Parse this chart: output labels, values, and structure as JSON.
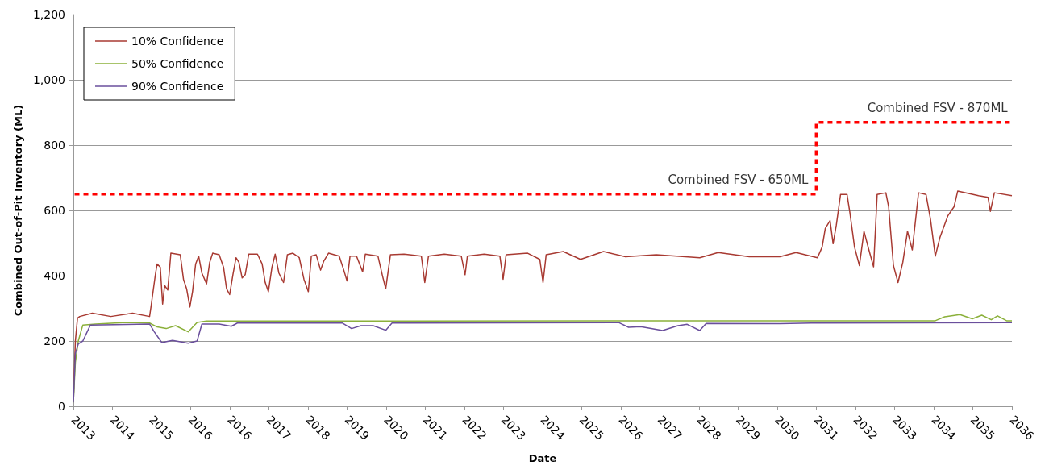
{
  "chart_data": {
    "type": "line",
    "xlabel": "Date",
    "ylabel": "Combined Out-of-Pit Inventory (ML)",
    "xlim": [
      "2013-02-25",
      "2036-03-09"
    ],
    "xticks": [
      {
        "value": "2013-02-25",
        "label": "2013"
      },
      {
        "value": "2014-02-10",
        "label": "2014"
      },
      {
        "value": "2015-01-26",
        "label": "2015"
      },
      {
        "value": "2016-01-11",
        "label": "2016"
      },
      {
        "value": "2016-12-27",
        "label": "2016"
      },
      {
        "value": "2017-12-13",
        "label": "2017"
      },
      {
        "value": "2018-11-28",
        "label": "2018"
      },
      {
        "value": "2019-11-14",
        "label": "2019"
      },
      {
        "value": "2020-10-29",
        "label": "2020"
      },
      {
        "value": "2021-10-15",
        "label": "2021"
      },
      {
        "value": "2022-10-01",
        "label": "2022"
      },
      {
        "value": "2023-09-16",
        "label": "2023"
      },
      {
        "value": "2024-09-02",
        "label": "2024"
      },
      {
        "value": "2025-08-17",
        "label": "2025"
      },
      {
        "value": "2026-08-03",
        "label": "2026"
      },
      {
        "value": "2027-07-19",
        "label": "2027"
      },
      {
        "value": "2028-07-04",
        "label": "2028"
      },
      {
        "value": "2029-06-20",
        "label": "2029"
      },
      {
        "value": "2030-06-05",
        "label": "2030"
      },
      {
        "value": "2031-05-21",
        "label": "2031"
      },
      {
        "value": "2032-05-07",
        "label": "2032"
      },
      {
        "value": "2033-04-22",
        "label": "2033"
      },
      {
        "value": "2034-04-08",
        "label": "2034"
      },
      {
        "value": "2035-03-23",
        "label": "2035"
      },
      {
        "value": "2036-03-09",
        "label": "2036"
      }
    ],
    "ylim": [
      0,
      1200
    ],
    "yticks": [
      0,
      200,
      400,
      600,
      800,
      {
        "value": 1000,
        "label": "1,000"
      },
      {
        "value": 1200,
        "label": "1,200"
      }
    ],
    "grid": "y",
    "legend": "top left",
    "series": [
      {
        "name": "10% Confidence",
        "color": "#a83a32",
        "x": [
          "2013-02-25",
          "2013-03-15",
          "2013-04-03",
          "2013-04-23",
          "2013-08-14",
          "2014-01-27",
          "2014-08-10",
          "2015-01-09",
          "2015-01-22",
          "2015-03-04",
          "2015-03-18",
          "2015-04-15",
          "2015-05-06",
          "2015-05-24",
          "2015-06-21",
          "2015-07-19",
          "2015-10-11",
          "2015-11-09",
          "2015-12-07",
          "2016-01-05",
          "2016-01-29",
          "2016-02-26",
          "2016-03-24",
          "2016-04-22",
          "2016-06-03",
          "2016-07-01",
          "2016-07-28",
          "2016-09-24",
          "2016-11-02",
          "2016-11-29",
          "2016-12-27",
          "2017-01-25",
          "2017-02-22",
          "2017-03-20",
          "2017-04-18",
          "2017-05-15",
          "2017-06-16",
          "2017-09-02",
          "2017-10-14",
          "2017-11-11",
          "2017-12-09",
          "2018-01-10",
          "2018-02-08",
          "2018-03-13",
          "2018-04-24",
          "2018-05-28",
          "2018-07-17",
          "2018-09-12",
          "2018-10-24",
          "2018-12-02",
          "2018-12-29",
          "2019-02-11",
          "2019-03-22",
          "2019-04-20",
          "2019-06-01",
          "2019-09-05",
          "2019-10-16",
          "2019-11-14",
          "2019-12-11",
          "2020-02-07",
          "2020-04-02",
          "2020-04-26",
          "2020-08-17",
          "2020-09-28",
          "2020-10-26",
          "2020-12-07",
          "2021-04-08",
          "2021-09-10",
          "2021-10-11",
          "2021-11-13",
          "2022-04-04",
          "2022-09-03",
          "2022-10-07",
          "2022-10-28",
          "2023-03-27",
          "2023-08-15",
          "2023-09-13",
          "2023-10-10",
          "2024-04-20",
          "2024-08-07",
          "2024-09-05",
          "2024-10-03",
          "2025-03-05",
          "2025-08-07",
          "2026-03-01",
          "2026-09-14",
          "2027-06-17",
          "2028-07-11",
          "2028-12-23",
          "2029-09-28",
          "2030-06-28",
          "2030-11-21",
          "2031-06-01",
          "2031-07-13",
          "2031-08-10",
          "2031-09-22",
          "2031-10-19",
          "2031-11-17",
          "2031-12-25",
          "2032-02-21",
          "2032-03-18",
          "2032-04-28",
          "2032-06-11",
          "2032-07-22",
          "2032-09-04",
          "2032-10-16",
          "2032-11-17",
          "2033-02-03",
          "2033-02-28",
          "2033-04-12",
          "2033-05-23",
          "2033-07-05",
          "2033-08-16",
          "2033-09-28",
          "2033-11-23",
          "2034-01-29",
          "2034-03-10",
          "2034-04-22",
          "2034-06-03",
          "2034-08-12",
          "2034-10-07",
          "2034-11-09",
          "2035-05-15",
          "2035-08-08",
          "2035-08-29",
          "2035-10-04",
          "2036-03-09"
        ],
        "values": [
          20,
          200,
          270,
          275,
          285,
          275,
          285,
          275,
          305,
          408,
          436,
          426,
          313,
          370,
          356,
          469,
          464,
          389,
          360,
          304,
          351,
          436,
          460,
          408,
          375,
          441,
          469,
          464,
          426,
          360,
          342,
          403,
          455,
          441,
          393,
          403,
          466,
          466,
          436,
          379,
          351,
          426,
          466,
          408,
          379,
          464,
          469,
          455,
          389,
          351,
          460,
          464,
          417,
          445,
          469,
          460,
          417,
          384,
          460,
          460,
          412,
          466,
          460,
          398,
          360,
          464,
          466,
          460,
          379,
          460,
          466,
          460,
          403,
          460,
          466,
          460,
          389,
          464,
          469,
          450,
          379,
          464,
          474,
          450,
          474,
          458,
          464,
          455,
          471,
          458,
          458,
          471,
          455,
          488,
          545,
          569,
          498,
          555,
          649,
          649,
          592,
          488,
          431,
          536,
          479,
          427,
          649,
          654,
          611,
          431,
          379,
          441,
          536,
          479,
          654,
          649,
          573,
          460,
          517,
          583,
          611,
          659,
          645,
          640,
          597,
          654,
          645
        ]
      },
      {
        "name": "50% Confidence",
        "color": "#8bb03a",
        "x": [
          "2013-02-25",
          "2013-03-15",
          "2013-04-10",
          "2013-05-21",
          "2013-09-12",
          "2014-06-15",
          "2015-01-09",
          "2015-03-18",
          "2015-06-07",
          "2015-08-30",
          "2015-12-21",
          "2016-03-10",
          "2016-06-03",
          "2034-04-22",
          "2034-07-15",
          "2034-11-29",
          "2035-03-20",
          "2035-06-13",
          "2035-09-06",
          "2035-11-01",
          "2036-01-21",
          "2036-03-09"
        ],
        "values": [
          12,
          134,
          200,
          249,
          252,
          257,
          255,
          243,
          238,
          247,
          228,
          257,
          261,
          262,
          274,
          281,
          268,
          279,
          265,
          277,
          262,
          262
        ]
      },
      {
        "name": "90% Confidence",
        "color": "#6a4f9c",
        "x": [
          "2013-02-25",
          "2013-03-15",
          "2013-04-10",
          "2013-05-21",
          "2013-07-28",
          "2015-01-09",
          "2015-02-20",
          "2015-04-29",
          "2015-08-02",
          "2015-12-21",
          "2016-03-10",
          "2016-04-22",
          "2016-09-24",
          "2017-01-11",
          "2017-03-06",
          "2019-10-02",
          "2019-12-25",
          "2020-03-18",
          "2020-07-05",
          "2020-10-26",
          "2020-12-21",
          "2026-07-19",
          "2026-10-12",
          "2027-01-29",
          "2027-08-13",
          "2027-12-28",
          "2028-03-20",
          "2028-07-11",
          "2028-09-06",
          "2030-06-28",
          "2031-04-06",
          "2036-03-09"
        ],
        "values": [
          12,
          162,
          191,
          200,
          249,
          252,
          228,
          195,
          202,
          193,
          200,
          252,
          252,
          245,
          255,
          255,
          238,
          247,
          247,
          233,
          255,
          256,
          242,
          244,
          232,
          247,
          251,
          232,
          254,
          253,
          255,
          256
        ]
      },
      {
        "type": "step",
        "color": "#ff0000",
        "line_style": "dashed",
        "x": [
          "2013-03-08",
          "2031-05-21",
          "2036-03-09"
        ],
        "values": [
          650,
          870,
          870
        ]
      }
    ],
    "annotations": [
      {
        "text": "Combined FSV - 650ML",
        "x": "2029-06-20",
        "y": 650
      },
      {
        "text": "Combined FSV - 870ML",
        "x": "2034-05-12",
        "y": 870
      }
    ]
  }
}
